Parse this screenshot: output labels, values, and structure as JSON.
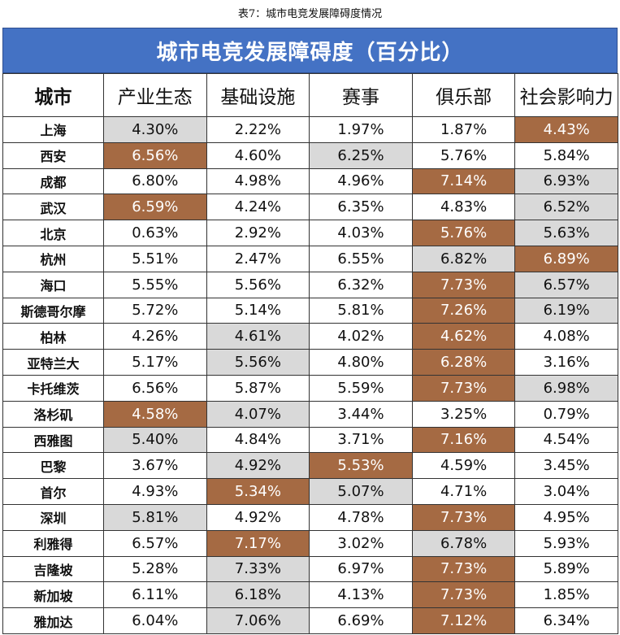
{
  "caption": "表7：城市电竞发展障碍度情况",
  "banner_title": "城市电竞发展障碍度（百分比）",
  "colors": {
    "header": "#4472c4",
    "highlight_high": "#a56a43",
    "highlight_mid": "#d9d9d9"
  },
  "columns": [
    "城市",
    "产业生态",
    "基础设施",
    "赛事",
    "俱乐部",
    "社会影响力"
  ],
  "rows": [
    {
      "city": "上海",
      "values": [
        "4.30%",
        "2.22%",
        "1.97%",
        "1.87%",
        "4.43%"
      ],
      "hl": [
        "g",
        "",
        "",
        "",
        "b"
      ]
    },
    {
      "city": "西安",
      "values": [
        "6.56%",
        "4.60%",
        "6.25%",
        "5.76%",
        "5.84%"
      ],
      "hl": [
        "b",
        "",
        "g",
        "",
        ""
      ]
    },
    {
      "city": "成都",
      "values": [
        "6.80%",
        "4.98%",
        "4.96%",
        "7.14%",
        "6.93%"
      ],
      "hl": [
        "",
        "",
        "",
        "b",
        "g"
      ]
    },
    {
      "city": "武汉",
      "values": [
        "6.59%",
        "4.24%",
        "6.35%",
        "4.83%",
        "6.52%"
      ],
      "hl": [
        "b",
        "",
        "",
        "",
        "g"
      ]
    },
    {
      "city": "北京",
      "values": [
        "0.63%",
        "2.92%",
        "4.03%",
        "5.76%",
        "5.63%"
      ],
      "hl": [
        "",
        "",
        "",
        "b",
        "g"
      ]
    },
    {
      "city": "杭州",
      "values": [
        "5.51%",
        "2.47%",
        "6.55%",
        "6.82%",
        "6.89%"
      ],
      "hl": [
        "",
        "",
        "",
        "g",
        "b"
      ]
    },
    {
      "city": "海口",
      "values": [
        "5.55%",
        "5.56%",
        "6.32%",
        "7.73%",
        "6.57%"
      ],
      "hl": [
        "",
        "",
        "",
        "b",
        "g"
      ]
    },
    {
      "city": "斯德哥尔摩",
      "values": [
        "5.72%",
        "5.14%",
        "5.81%",
        "7.26%",
        "6.19%"
      ],
      "hl": [
        "",
        "",
        "",
        "b",
        "g"
      ]
    },
    {
      "city": "柏林",
      "values": [
        "4.26%",
        "4.61%",
        "4.02%",
        "4.62%",
        "4.08%"
      ],
      "hl": [
        "",
        "g",
        "",
        "b",
        ""
      ]
    },
    {
      "city": "亚特兰大",
      "values": [
        "5.17%",
        "5.56%",
        "4.80%",
        "6.28%",
        "3.16%"
      ],
      "hl": [
        "",
        "g",
        "",
        "b",
        ""
      ]
    },
    {
      "city": "卡托维茨",
      "values": [
        "6.56%",
        "5.87%",
        "5.59%",
        "7.73%",
        "6.98%"
      ],
      "hl": [
        "",
        "",
        "",
        "b",
        "g"
      ]
    },
    {
      "city": "洛杉矶",
      "values": [
        "4.58%",
        "4.07%",
        "3.44%",
        "3.25%",
        "0.79%"
      ],
      "hl": [
        "b",
        "g",
        "",
        "",
        ""
      ]
    },
    {
      "city": "西雅图",
      "values": [
        "5.40%",
        "4.84%",
        "3.71%",
        "7.16%",
        "4.54%"
      ],
      "hl": [
        "g",
        "",
        "",
        "b",
        ""
      ]
    },
    {
      "city": "巴黎",
      "values": [
        "3.67%",
        "4.92%",
        "5.53%",
        "4.59%",
        "3.45%"
      ],
      "hl": [
        "",
        "g",
        "b",
        "",
        ""
      ]
    },
    {
      "city": "首尔",
      "values": [
        "4.93%",
        "5.34%",
        "5.07%",
        "4.71%",
        "3.04%"
      ],
      "hl": [
        "",
        "b",
        "g",
        "",
        ""
      ]
    },
    {
      "city": "深圳",
      "values": [
        "5.81%",
        "4.92%",
        "4.78%",
        "7.73%",
        "4.95%"
      ],
      "hl": [
        "g",
        "",
        "",
        "b",
        ""
      ]
    },
    {
      "city": "利雅得",
      "values": [
        "6.57%",
        "7.17%",
        "3.02%",
        "6.78%",
        "5.93%"
      ],
      "hl": [
        "",
        "b",
        "",
        "g",
        ""
      ]
    },
    {
      "city": "吉隆坡",
      "values": [
        "5.28%",
        "7.33%",
        "6.97%",
        "7.73%",
        "5.89%"
      ],
      "hl": [
        "",
        "g",
        "",
        "b",
        ""
      ]
    },
    {
      "city": "新加坡",
      "values": [
        "6.11%",
        "6.18%",
        "4.13%",
        "7.73%",
        "1.85%"
      ],
      "hl": [
        "",
        "g",
        "",
        "b",
        ""
      ]
    },
    {
      "city": "雅加达",
      "values": [
        "6.04%",
        "7.06%",
        "6.69%",
        "7.12%",
        "6.34%"
      ],
      "hl": [
        "",
        "g",
        "",
        "b",
        ""
      ]
    }
  ]
}
